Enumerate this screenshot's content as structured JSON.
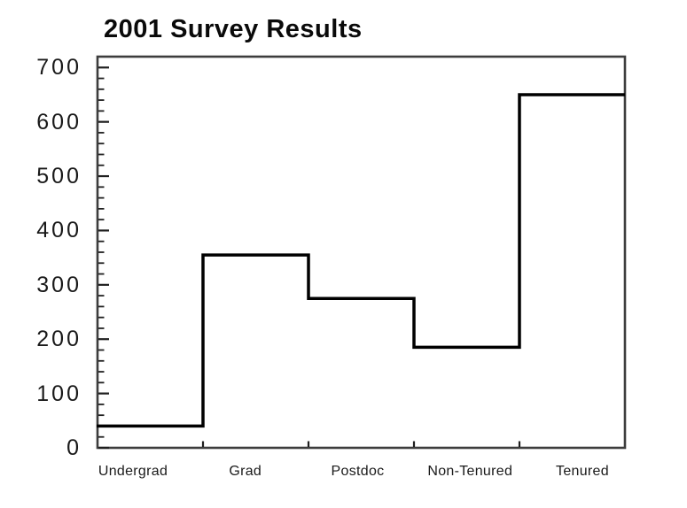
{
  "chart_data": {
    "type": "step",
    "title": "2001 Survey Results",
    "categories": [
      "Undergrad",
      "Grad",
      "Postdoc",
      "Non-Tenured",
      "Tenured"
    ],
    "values": [
      40,
      355,
      275,
      185,
      650
    ],
    "xlabel": "",
    "ylabel": "",
    "ylim": [
      0,
      720
    ],
    "y_major_ticks": [
      0,
      100,
      200,
      300,
      400,
      500,
      600,
      700
    ],
    "y_minor_step": 20,
    "grid": false,
    "legend": false,
    "line_color": "#000000",
    "frame_color": "#3d3d3d",
    "tick_color": "#1f1f1f",
    "text_color": "#1a1a1a",
    "background": "#ffffff"
  }
}
